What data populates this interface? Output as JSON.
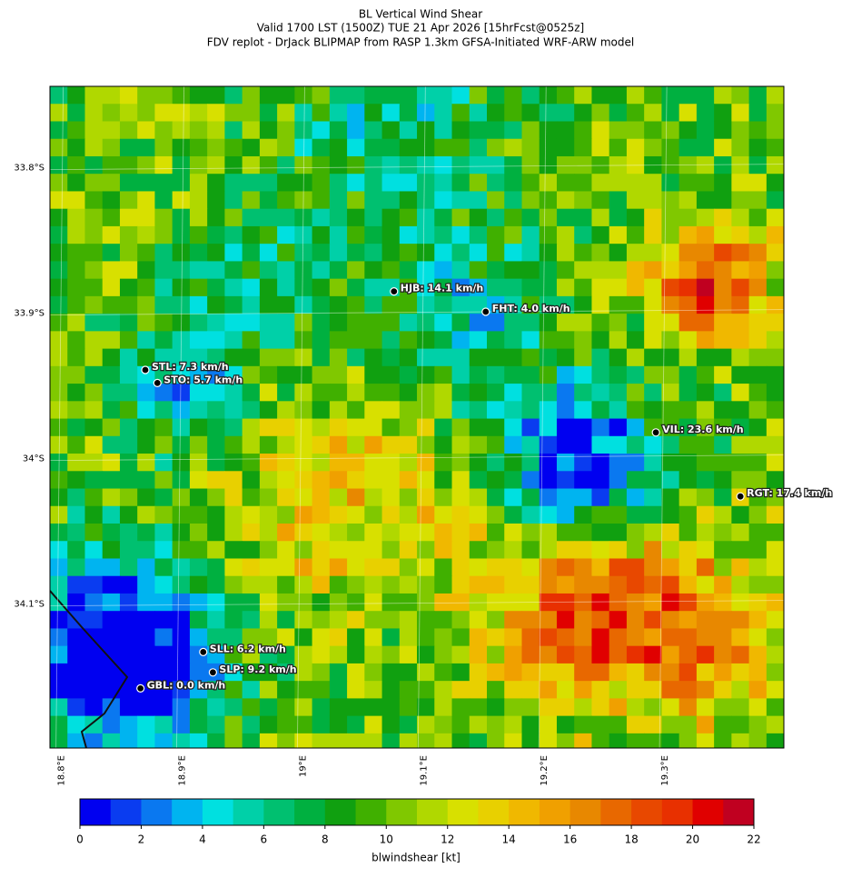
{
  "chart_data": {
    "type": "map",
    "title": [
      "BL Vertical Wind Shear",
      "Valid 1700 LST (1500Z) TUE 21 Apr 2026 [15hrFcst@0525z]",
      "FDV replot - DrJack BLIPMAP from RASP 1.3km GFSA-Initiated WRF-ARW model"
    ],
    "xlim": [
      18.792,
      19.4
    ],
    "ylim": [
      -34.199,
      -33.744
    ],
    "xticks": [
      {
        "value": 18.8,
        "label": "18.8°E"
      },
      {
        "value": 18.9,
        "label": "18.9°E"
      },
      {
        "value": 19.0,
        "label": "19°E"
      },
      {
        "value": 19.1,
        "label": "19.1°E"
      },
      {
        "value": 19.2,
        "label": "19.2°E"
      },
      {
        "value": 19.3,
        "label": "19.3°E"
      }
    ],
    "yticks": [
      {
        "value": -33.8,
        "label": "33.8°S"
      },
      {
        "value": -33.9,
        "label": "33.9°S"
      },
      {
        "value": -34.0,
        "label": "34°S"
      },
      {
        "value": -34.1,
        "label": "34.1°S"
      }
    ],
    "grid": true,
    "stations": [
      {
        "label": "HJB: 14.1 km/h",
        "lon": 19.077,
        "lat": -33.885
      },
      {
        "label": "FHT: 4.0 km/h",
        "lon": 19.153,
        "lat": -33.899
      },
      {
        "label": "STL: 7.3 km/h",
        "lon": 18.871,
        "lat": -33.939
      },
      {
        "label": "STO: 5.7 km/h",
        "lon": 18.881,
        "lat": -33.948
      },
      {
        "label": "VIL: 23.6 km/h",
        "lon": 19.294,
        "lat": -33.982
      },
      {
        "label": "RGT: 17.4 km/h",
        "lon": 19.364,
        "lat": -34.026
      },
      {
        "label": "SLL: 6.2 km/h",
        "lon": 18.919,
        "lat": -34.133
      },
      {
        "label": "SLP: 9.2 km/h",
        "lon": 18.927,
        "lat": -34.147
      },
      {
        "label": "GBL: 0.0 km/h",
        "lon": 18.867,
        "lat": -34.158
      }
    ],
    "colorbar": {
      "label": "blwindshear [kt]",
      "bounds": [
        0,
        1,
        2,
        3,
        4,
        5,
        6,
        7,
        8,
        9,
        10,
        11,
        12,
        13,
        14,
        15,
        16,
        17,
        18,
        19,
        20,
        21,
        22
      ],
      "colors": [
        "#0000f0",
        "#0a3cf0",
        "#0a78f0",
        "#00b4f0",
        "#00e0e0",
        "#00d0a8",
        "#00c070",
        "#00b040",
        "#10a010",
        "#40b000",
        "#80c800",
        "#b0d800",
        "#d8e000",
        "#e8d000",
        "#f0b800",
        "#f0a000",
        "#e88800",
        "#e86800",
        "#e84800",
        "#e83000",
        "#e00000",
        "#c00020"
      ],
      "ticks": [
        0,
        2,
        4,
        6,
        8,
        10,
        12,
        14,
        16,
        18,
        20,
        22
      ]
    }
  }
}
